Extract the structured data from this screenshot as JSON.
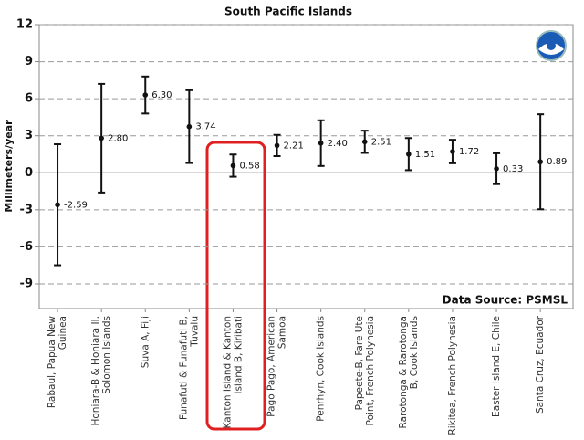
{
  "chart_data": {
    "type": "errorbar",
    "title": "South Pacific Islands",
    "ylabel": "Millimeters/year",
    "annotation": "Data Source: PSMSL",
    "categories": [
      "Rabaul, Papua New Guinea",
      "Honiara-B & Honiara II, Solomon Islands",
      "Suva A, Fiji",
      "Funafuti & Funafuti B, Tuvalu",
      "Kanton Island & Kanton Island B, Kiribati",
      "Pago Pago, American Samoa",
      "Penrhyn, Cook Islands",
      "Papeete-B, Fare Ute Point, French Polynesia",
      "Rarotonga & Rarotonga B, Cook Islands",
      "Rikitea, French Polynesia",
      "Easter Island E, Chile",
      "Santa Cruz, Ecuador"
    ],
    "values": [
      -2.59,
      2.8,
      6.3,
      3.74,
      0.58,
      2.21,
      2.4,
      2.51,
      1.51,
      1.72,
      0.33,
      0.89
    ],
    "value_labels": [
      "-2.59",
      "2.80",
      "6.30",
      "3.74",
      "0.58",
      "2.21",
      "2.40",
      "2.51",
      "1.51",
      "1.72",
      "0.33",
      "0.89"
    ],
    "errors": [
      4.9,
      4.4,
      1.5,
      2.95,
      0.9,
      0.86,
      1.85,
      0.9,
      1.3,
      0.95,
      1.25,
      3.85
    ],
    "color": "#111111",
    "ylim": [
      -11,
      12
    ],
    "yticks": [
      -9,
      -6,
      -3,
      0,
      3,
      6,
      9,
      12
    ],
    "grid": true
  }
}
